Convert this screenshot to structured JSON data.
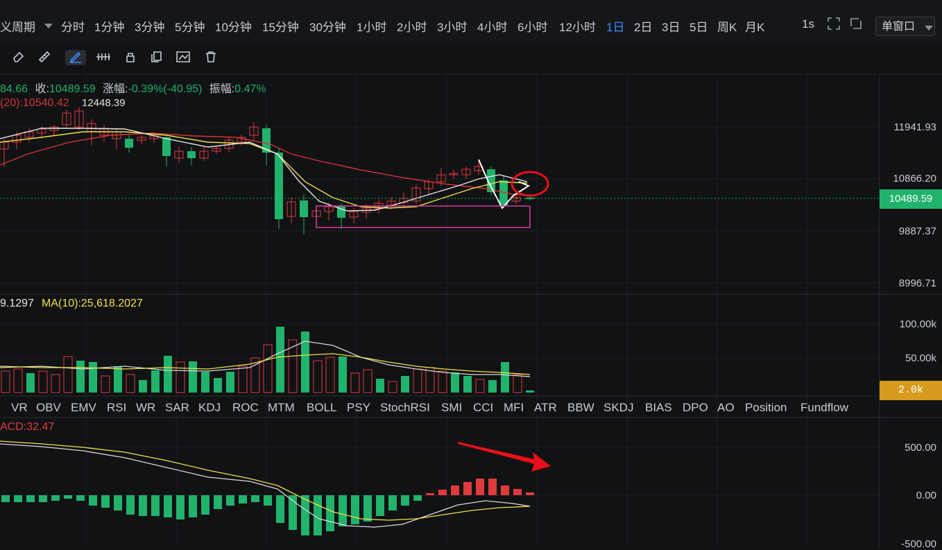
{
  "toolbar": {
    "period_label": "义周期",
    "timeframes": [
      "分时",
      "1分钟",
      "3分钟",
      "5分钟",
      "10分钟",
      "15分钟",
      "30分钟",
      "1小时",
      "2小时",
      "3小时",
      "4小时",
      "6小时",
      "12小时",
      "1日",
      "2日",
      "3日",
      "5日",
      "周K",
      "月K"
    ],
    "active_timeframe": "1日",
    "interval": "1s",
    "window_mode": "单窗口"
  },
  "drawing_tools": [
    "eraser-icon",
    "ruler-icon",
    "pen-icon",
    "pattern-icon",
    "lock-icon",
    "copy-icon",
    "settings-icon",
    "trash-icon"
  ],
  "price_panel": {
    "info_open": "84.66",
    "close_label": "收:",
    "close_value": "10489.59",
    "change_label": "涨幅:",
    "change_value": "-0.39%(-40.95)",
    "amplitude_label": "振幅:",
    "amplitude_value": "0.47%",
    "ma_label": "(20):10540.42",
    "high_label": "12448.39",
    "y_ticks": [
      "11941.93",
      "10866.20",
      "9887.37",
      "8996.71"
    ],
    "current_price": "10489.59"
  },
  "volume_panel": {
    "value_label": "9.1297",
    "ma_label": "MA(10):25,618.2027",
    "y_ticks": [
      "100.00k",
      "50.00k"
    ],
    "current_volume": "2.0k"
  },
  "indicator_tabs": [
    "VR",
    "OBV",
    "EMV",
    "RSI",
    "WR",
    "SAR",
    "KDJ",
    "ROC",
    "MTM",
    "BOLL",
    "PSY",
    "StochRSI",
    "SMI",
    "CCI",
    "MFI",
    "ATR",
    "BBW",
    "SKDJ",
    "BIAS",
    "DPO",
    "AO",
    "Position",
    "Fundflow"
  ],
  "macd_panel": {
    "label": "ACD:32.47",
    "y_ticks": [
      "500.00",
      "0.00",
      "-500.00"
    ]
  },
  "colors": {
    "up": "#e03a3e",
    "down": "#21b26c",
    "accent": "#3d8bfd",
    "ma_yellow": "#f2e14c",
    "ma_white": "#e6e6e6",
    "ma_red": "#d4343a",
    "price_tag": "#21b26c",
    "volume_tag": "#d69a1e"
  }
}
